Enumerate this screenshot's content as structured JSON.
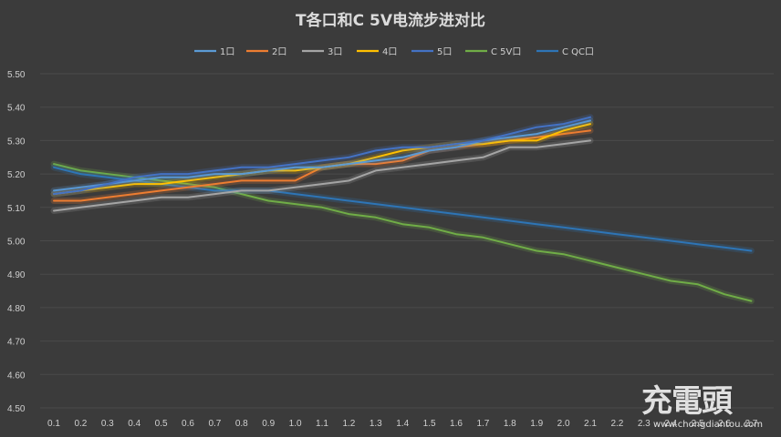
{
  "chart_data": {
    "type": "line",
    "title": "T各口和C 5V电流步进对比",
    "xlabel": "",
    "ylabel": "",
    "ylim": [
      4.5,
      5.5
    ],
    "yticks": [
      "4.50",
      "4.60",
      "4.70",
      "4.80",
      "4.90",
      "5.00",
      "5.10",
      "5.20",
      "5.30",
      "5.40",
      "5.50"
    ],
    "categories": [
      "0.1",
      "0.2",
      "0.3",
      "0.4",
      "0.5",
      "0.6",
      "0.7",
      "0.8",
      "0.9",
      "1.0",
      "1.1",
      "1.2",
      "1.3",
      "1.4",
      "1.5",
      "1.6",
      "1.7",
      "1.8",
      "1.9",
      "2.0",
      "2.1",
      "2.2",
      "2.3",
      "2.4",
      "2.5",
      "2.6",
      "2.7"
    ],
    "grid": true,
    "legend_position": "top",
    "series": [
      {
        "name": "1口",
        "color": "#5b9bd5",
        "values": [
          5.15,
          5.16,
          5.17,
          5.18,
          5.19,
          5.19,
          5.2,
          5.2,
          5.21,
          5.22,
          5.22,
          5.23,
          5.24,
          5.25,
          5.27,
          5.28,
          5.3,
          5.31,
          5.32,
          5.34,
          5.36,
          null,
          null,
          null,
          null,
          null,
          null
        ]
      },
      {
        "name": "2口",
        "color": "#ed7d31",
        "values": [
          5.12,
          5.12,
          5.13,
          5.14,
          5.15,
          5.16,
          5.17,
          5.18,
          5.18,
          5.18,
          5.22,
          5.23,
          5.23,
          5.24,
          5.27,
          5.28,
          5.29,
          5.3,
          5.31,
          5.32,
          5.33,
          null,
          null,
          null,
          null,
          null,
          null
        ]
      },
      {
        "name": "3口",
        "color": "#a5a5a5",
        "values": [
          5.09,
          5.1,
          5.11,
          5.12,
          5.13,
          5.13,
          5.14,
          5.15,
          5.15,
          5.16,
          5.17,
          5.18,
          5.21,
          5.22,
          5.23,
          5.24,
          5.25,
          5.28,
          5.28,
          5.29,
          5.3,
          null,
          null,
          null,
          null,
          null,
          null
        ]
      },
      {
        "name": "4口",
        "color": "#ffc000",
        "values": [
          5.14,
          5.15,
          5.16,
          5.17,
          5.17,
          5.18,
          5.19,
          5.2,
          5.21,
          5.21,
          5.22,
          5.23,
          5.25,
          5.27,
          5.28,
          5.29,
          5.29,
          5.3,
          5.3,
          5.33,
          5.35,
          null,
          null,
          null,
          null,
          null,
          null
        ]
      },
      {
        "name": "5口",
        "color": "#4472c4",
        "values": [
          5.14,
          5.15,
          5.17,
          5.19,
          5.2,
          5.2,
          5.21,
          5.22,
          5.22,
          5.23,
          5.24,
          5.25,
          5.27,
          5.28,
          5.28,
          5.29,
          5.3,
          5.32,
          5.34,
          5.35,
          5.37,
          null,
          null,
          null,
          null,
          null,
          null
        ]
      },
      {
        "name": "C 5V口",
        "color": "#70ad47",
        "values": [
          5.23,
          5.21,
          5.2,
          5.19,
          5.18,
          5.17,
          5.16,
          5.14,
          5.12,
          5.11,
          5.1,
          5.08,
          5.07,
          5.05,
          5.04,
          5.02,
          5.01,
          4.99,
          4.97,
          4.96,
          4.94,
          4.92,
          4.9,
          4.88,
          4.87,
          4.84,
          4.82
        ]
      },
      {
        "name": "C QC口",
        "color": "#2e75b6",
        "values": [
          5.22,
          5.2,
          5.19,
          5.18,
          5.17,
          5.16,
          5.15,
          5.15,
          5.15,
          5.14,
          5.13,
          5.12,
          5.11,
          5.1,
          5.09,
          5.08,
          5.07,
          5.06,
          5.05,
          5.04,
          5.03,
          5.02,
          5.01,
          5.0,
          4.99,
          4.98,
          4.97
        ]
      }
    ]
  },
  "watermark": {
    "main": "充電頭",
    "sub": "www.chongdiantou.com"
  }
}
